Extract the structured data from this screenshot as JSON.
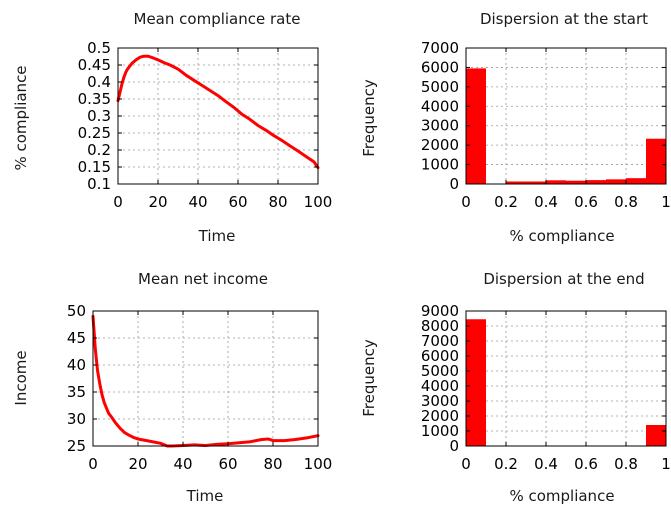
{
  "colors": {
    "series": "#ff0000",
    "frame": "#000000",
    "grid": "#9a9a9a"
  },
  "chart_data": [
    {
      "type": "line",
      "title": "Mean compliance rate",
      "xlabel": "Time",
      "ylabel": "% compliance",
      "xlim": [
        0,
        100
      ],
      "ylim": [
        0.1,
        0.5
      ],
      "xticks": [
        0,
        20,
        40,
        60,
        80,
        100
      ],
      "yticks": [
        0.1,
        0.15,
        0.2,
        0.25,
        0.3,
        0.35,
        0.4,
        0.45,
        0.5
      ],
      "xtick_labels": [
        "0",
        "20",
        "40",
        "60",
        "80",
        "100"
      ],
      "ytick_labels": [
        "0.1",
        "0.15",
        "0.2",
        "0.25",
        "0.3",
        "0.35",
        "0.4",
        "0.45",
        "0.5"
      ],
      "grid": true,
      "series": [
        {
          "x": [
            0,
            1,
            2,
            3,
            4,
            5,
            7,
            9,
            11,
            13,
            15,
            17,
            20,
            23,
            26,
            30,
            34,
            38,
            42,
            46,
            50,
            54,
            58,
            62,
            66,
            70,
            74,
            78,
            82,
            86,
            90,
            94,
            98,
            100
          ],
          "values": [
            0.345,
            0.37,
            0.395,
            0.415,
            0.43,
            0.44,
            0.455,
            0.465,
            0.473,
            0.476,
            0.476,
            0.472,
            0.465,
            0.457,
            0.45,
            0.438,
            0.42,
            0.405,
            0.39,
            0.375,
            0.36,
            0.342,
            0.325,
            0.305,
            0.29,
            0.272,
            0.258,
            0.242,
            0.228,
            0.212,
            0.197,
            0.181,
            0.165,
            0.148
          ]
        }
      ]
    },
    {
      "type": "bar",
      "title": "Dispersion at the start",
      "xlabel": "% compliance",
      "ylabel": "Frequency",
      "xlim": [
        0,
        1
      ],
      "ylim": [
        0,
        7000
      ],
      "xticks": [
        0,
        0.2,
        0.4,
        0.6,
        0.8,
        1
      ],
      "yticks": [
        0,
        1000,
        2000,
        3000,
        4000,
        5000,
        6000,
        7000
      ],
      "xtick_labels": [
        "0",
        "0.2",
        "0.4",
        "0.6",
        "0.8",
        "1"
      ],
      "ytick_labels": [
        "0",
        "1000",
        "2000",
        "3000",
        "4000",
        "5000",
        "6000",
        "7000"
      ],
      "grid": true,
      "bin_edges": [
        0,
        0.1,
        0.2,
        0.3,
        0.4,
        0.5,
        0.6,
        0.7,
        0.8,
        0.9,
        1.0
      ],
      "values": [
        5950,
        20,
        130,
        130,
        190,
        170,
        200,
        240,
        300,
        2330
      ]
    },
    {
      "type": "line",
      "title": "Mean net income",
      "xlabel": "Time",
      "ylabel": "Income",
      "xlim": [
        0,
        100
      ],
      "ylim": [
        25,
        50
      ],
      "xticks": [
        0,
        20,
        40,
        60,
        80,
        100
      ],
      "yticks": [
        25,
        30,
        35,
        40,
        45,
        50
      ],
      "xtick_labels": [
        "0",
        "20",
        "40",
        "60",
        "80",
        "100"
      ],
      "ytick_labels": [
        "25",
        "30",
        "35",
        "40",
        "45",
        "50"
      ],
      "grid": true,
      "series": [
        {
          "x": [
            0,
            1,
            2,
            3,
            4,
            5,
            6,
            7,
            8,
            10,
            12,
            14,
            16,
            18,
            20,
            25,
            30,
            33,
            35,
            40,
            45,
            50,
            55,
            60,
            65,
            70,
            75,
            78,
            80,
            85,
            90,
            95,
            100
          ],
          "values": [
            49,
            43,
            39,
            36.5,
            34.5,
            33,
            32,
            31,
            30.5,
            29.3,
            28.3,
            27.5,
            27,
            26.6,
            26.3,
            25.9,
            25.5,
            25.0,
            25.0,
            25.1,
            25.2,
            25.1,
            25.3,
            25.4,
            25.6,
            25.8,
            26.2,
            26.3,
            26.0,
            26.0,
            26.2,
            26.5,
            26.9
          ]
        }
      ]
    },
    {
      "type": "bar",
      "title": "Dispersion at the end",
      "xlabel": "% compliance",
      "ylabel": "Frequency",
      "xlim": [
        0,
        1
      ],
      "ylim": [
        0,
        9000
      ],
      "xticks": [
        0,
        0.2,
        0.4,
        0.6,
        0.8,
        1
      ],
      "yticks": [
        0,
        1000,
        2000,
        3000,
        4000,
        5000,
        6000,
        7000,
        8000,
        9000
      ],
      "xtick_labels": [
        "0",
        "0.2",
        "0.4",
        "0.6",
        "0.8",
        "1"
      ],
      "ytick_labels": [
        "0",
        "1000",
        "2000",
        "3000",
        "4000",
        "5000",
        "6000",
        "7000",
        "8000",
        "9000"
      ],
      "grid": true,
      "bin_edges": [
        0,
        0.1,
        0.2,
        0.3,
        0.4,
        0.5,
        0.6,
        0.7,
        0.8,
        0.9,
        1.0
      ],
      "values": [
        8450,
        0,
        0,
        0,
        0,
        0,
        0,
        0,
        0,
        1400
      ]
    }
  ]
}
